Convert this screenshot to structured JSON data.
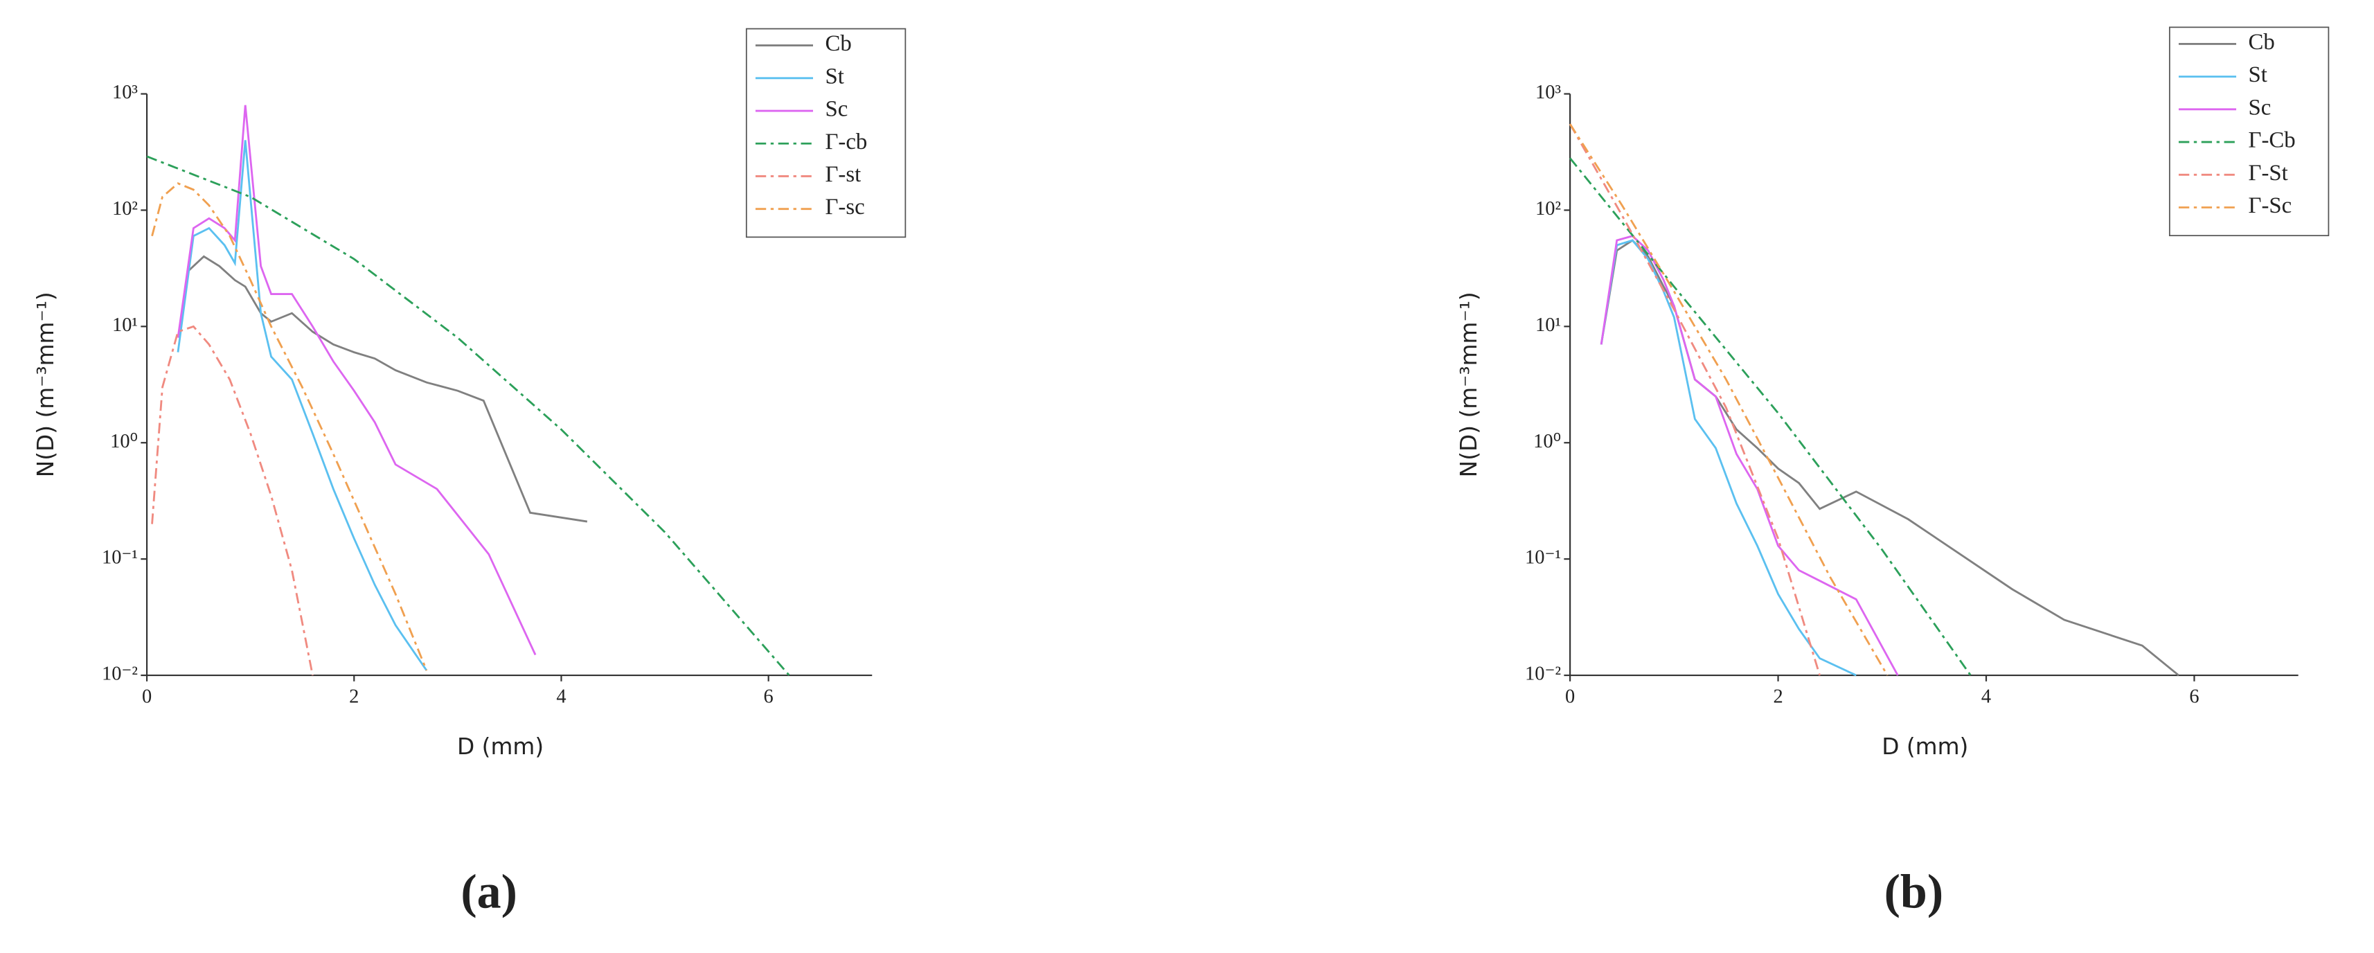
{
  "chart_data": [
    {
      "type": "line",
      "panel_label": "(a)",
      "xlabel": "D (mm)",
      "ylabel": "N(D) (m⁻³mm⁻¹)",
      "xlim": [
        0,
        7
      ],
      "xticks": [
        0,
        2,
        4,
        6
      ],
      "yscale": "log",
      "ylim": [
        0.01,
        1000
      ],
      "yticks": [
        {
          "value": 0.01,
          "label": "10⁻²"
        },
        {
          "value": 0.1,
          "label": "10⁻¹"
        },
        {
          "value": 1,
          "label": "10⁰"
        },
        {
          "value": 10,
          "label": "10¹"
        },
        {
          "value": 100,
          "label": "10²"
        },
        {
          "value": 1000,
          "label": "10³"
        }
      ],
      "legend": "top-right",
      "series": [
        {
          "name": "Cb",
          "color": "#808080",
          "linestyle": "solid",
          "x": [
            0.4,
            0.55,
            0.7,
            0.85,
            0.95,
            1.1,
            1.2,
            1.4,
            1.6,
            1.8,
            2.0,
            2.2,
            2.4,
            2.7,
            3.0,
            3.25,
            3.7,
            4.25
          ],
          "values": [
            30,
            40,
            33,
            25,
            22,
            13,
            11,
            13,
            9,
            7,
            6,
            5.3,
            4.2,
            3.3,
            2.8,
            2.3,
            0.25,
            0.21
          ]
        },
        {
          "name": "St",
          "color": "#5bc0f0",
          "linestyle": "solid",
          "x": [
            0.3,
            0.45,
            0.6,
            0.75,
            0.85,
            0.95,
            1.1,
            1.2,
            1.4,
            1.6,
            1.8,
            2.0,
            2.2,
            2.4,
            2.7
          ],
          "values": [
            6,
            60,
            70,
            50,
            35,
            400,
            13,
            5.5,
            3.5,
            1.2,
            0.4,
            0.15,
            0.06,
            0.027,
            0.011
          ]
        },
        {
          "name": "Sc",
          "color": "#dd66f0",
          "linestyle": "solid",
          "x": [
            0.3,
            0.45,
            0.6,
            0.75,
            0.85,
            0.95,
            1.1,
            1.2,
            1.4,
            1.6,
            1.8,
            2.0,
            2.2,
            2.4,
            2.8,
            3.3,
            3.75
          ],
          "values": [
            8,
            70,
            85,
            70,
            55,
            800,
            33,
            19,
            19,
            10,
            5,
            2.8,
            1.5,
            0.65,
            0.4,
            0.11,
            0.015
          ]
        },
        {
          "name": "Γ-cb",
          "color": "#2ca05a",
          "linestyle": "dashdot",
          "x": [
            0,
            1,
            2,
            3,
            4,
            5,
            6.2
          ],
          "values": [
            290,
            130,
            38,
            8,
            1.3,
            0.17,
            0.01
          ]
        },
        {
          "name": "Γ-st",
          "color": "#f08a80",
          "linestyle": "dashdot",
          "x": [
            0.05,
            0.15,
            0.3,
            0.45,
            0.6,
            0.8,
            1.0,
            1.2,
            1.4,
            1.6
          ],
          "values": [
            0.2,
            3,
            9,
            10,
            7,
            3.5,
            1.2,
            0.35,
            0.08,
            0.01
          ]
        },
        {
          "name": "Γ-sc",
          "color": "#f0a050",
          "linestyle": "dashdot",
          "x": [
            0.05,
            0.15,
            0.3,
            0.45,
            0.6,
            0.8,
            1.0,
            1.2,
            1.5,
            1.8,
            2.1,
            2.4,
            2.7
          ],
          "values": [
            60,
            130,
            170,
            150,
            110,
            60,
            25,
            10,
            3,
            0.8,
            0.2,
            0.05,
            0.011
          ]
        }
      ]
    },
    {
      "type": "line",
      "panel_label": "(b)",
      "xlabel": "D (mm)",
      "ylabel": "N(D) (m⁻³mm⁻¹)",
      "xlim": [
        0,
        7
      ],
      "xticks": [
        0,
        2,
        4,
        6
      ],
      "yscale": "log",
      "ylim": [
        0.01,
        1000
      ],
      "yticks": [
        {
          "value": 0.01,
          "label": "10⁻²"
        },
        {
          "value": 0.1,
          "label": "10⁻¹"
        },
        {
          "value": 1,
          "label": "10⁰"
        },
        {
          "value": 10,
          "label": "10¹"
        },
        {
          "value": 100,
          "label": "10²"
        },
        {
          "value": 1000,
          "label": "10³"
        }
      ],
      "legend": "top-right",
      "series": [
        {
          "name": "Cb",
          "color": "#808080",
          "linestyle": "solid",
          "x": [
            0.3,
            0.45,
            0.6,
            0.75,
            0.9,
            1.0,
            1.2,
            1.4,
            1.6,
            1.8,
            2.0,
            2.2,
            2.4,
            2.75,
            3.25,
            3.75,
            4.25,
            4.75,
            5.5,
            5.85
          ],
          "values": [
            7,
            45,
            55,
            40,
            22,
            15,
            3.5,
            2.5,
            1.3,
            0.9,
            0.6,
            0.45,
            0.27,
            0.38,
            0.22,
            0.11,
            0.055,
            0.03,
            0.018,
            0.01
          ]
        },
        {
          "name": "St",
          "color": "#5bc0f0",
          "linestyle": "solid",
          "x": [
            0.3,
            0.45,
            0.6,
            0.75,
            0.9,
            1.0,
            1.2,
            1.4,
            1.6,
            1.8,
            2.0,
            2.2,
            2.4,
            2.75
          ],
          "values": [
            7,
            50,
            55,
            38,
            20,
            12,
            1.6,
            0.9,
            0.3,
            0.13,
            0.05,
            0.025,
            0.014,
            0.01
          ]
        },
        {
          "name": "Sc",
          "color": "#dd66f0",
          "linestyle": "solid",
          "x": [
            0.3,
            0.45,
            0.6,
            0.75,
            0.9,
            1.0,
            1.2,
            1.4,
            1.6,
            1.8,
            2.0,
            2.2,
            2.4,
            2.75,
            3.15
          ],
          "values": [
            7,
            55,
            60,
            45,
            25,
            15,
            3.5,
            2.5,
            0.8,
            0.4,
            0.13,
            0.08,
            0.065,
            0.045,
            0.01
          ]
        },
        {
          "name": "Γ-Cb",
          "color": "#2ca05a",
          "linestyle": "dashdot",
          "x": [
            0,
            1,
            2,
            3,
            3.85
          ],
          "values": [
            280,
            22,
            1.8,
            0.12,
            0.01
          ]
        },
        {
          "name": "Γ-St",
          "color": "#f08a80",
          "linestyle": "dashdot",
          "x": [
            0,
            0.5,
            1,
            1.5,
            2,
            2.4
          ],
          "values": [
            550,
            90,
            14,
            2,
            0.15,
            0.01
          ]
        },
        {
          "name": "Γ-Sc",
          "color": "#f0a050",
          "linestyle": "dashdot",
          "x": [
            0,
            0.5,
            1,
            1.5,
            2,
            2.5,
            3.05
          ],
          "values": [
            550,
            110,
            20,
            3.5,
            0.5,
            0.07,
            0.01
          ]
        }
      ]
    }
  ]
}
